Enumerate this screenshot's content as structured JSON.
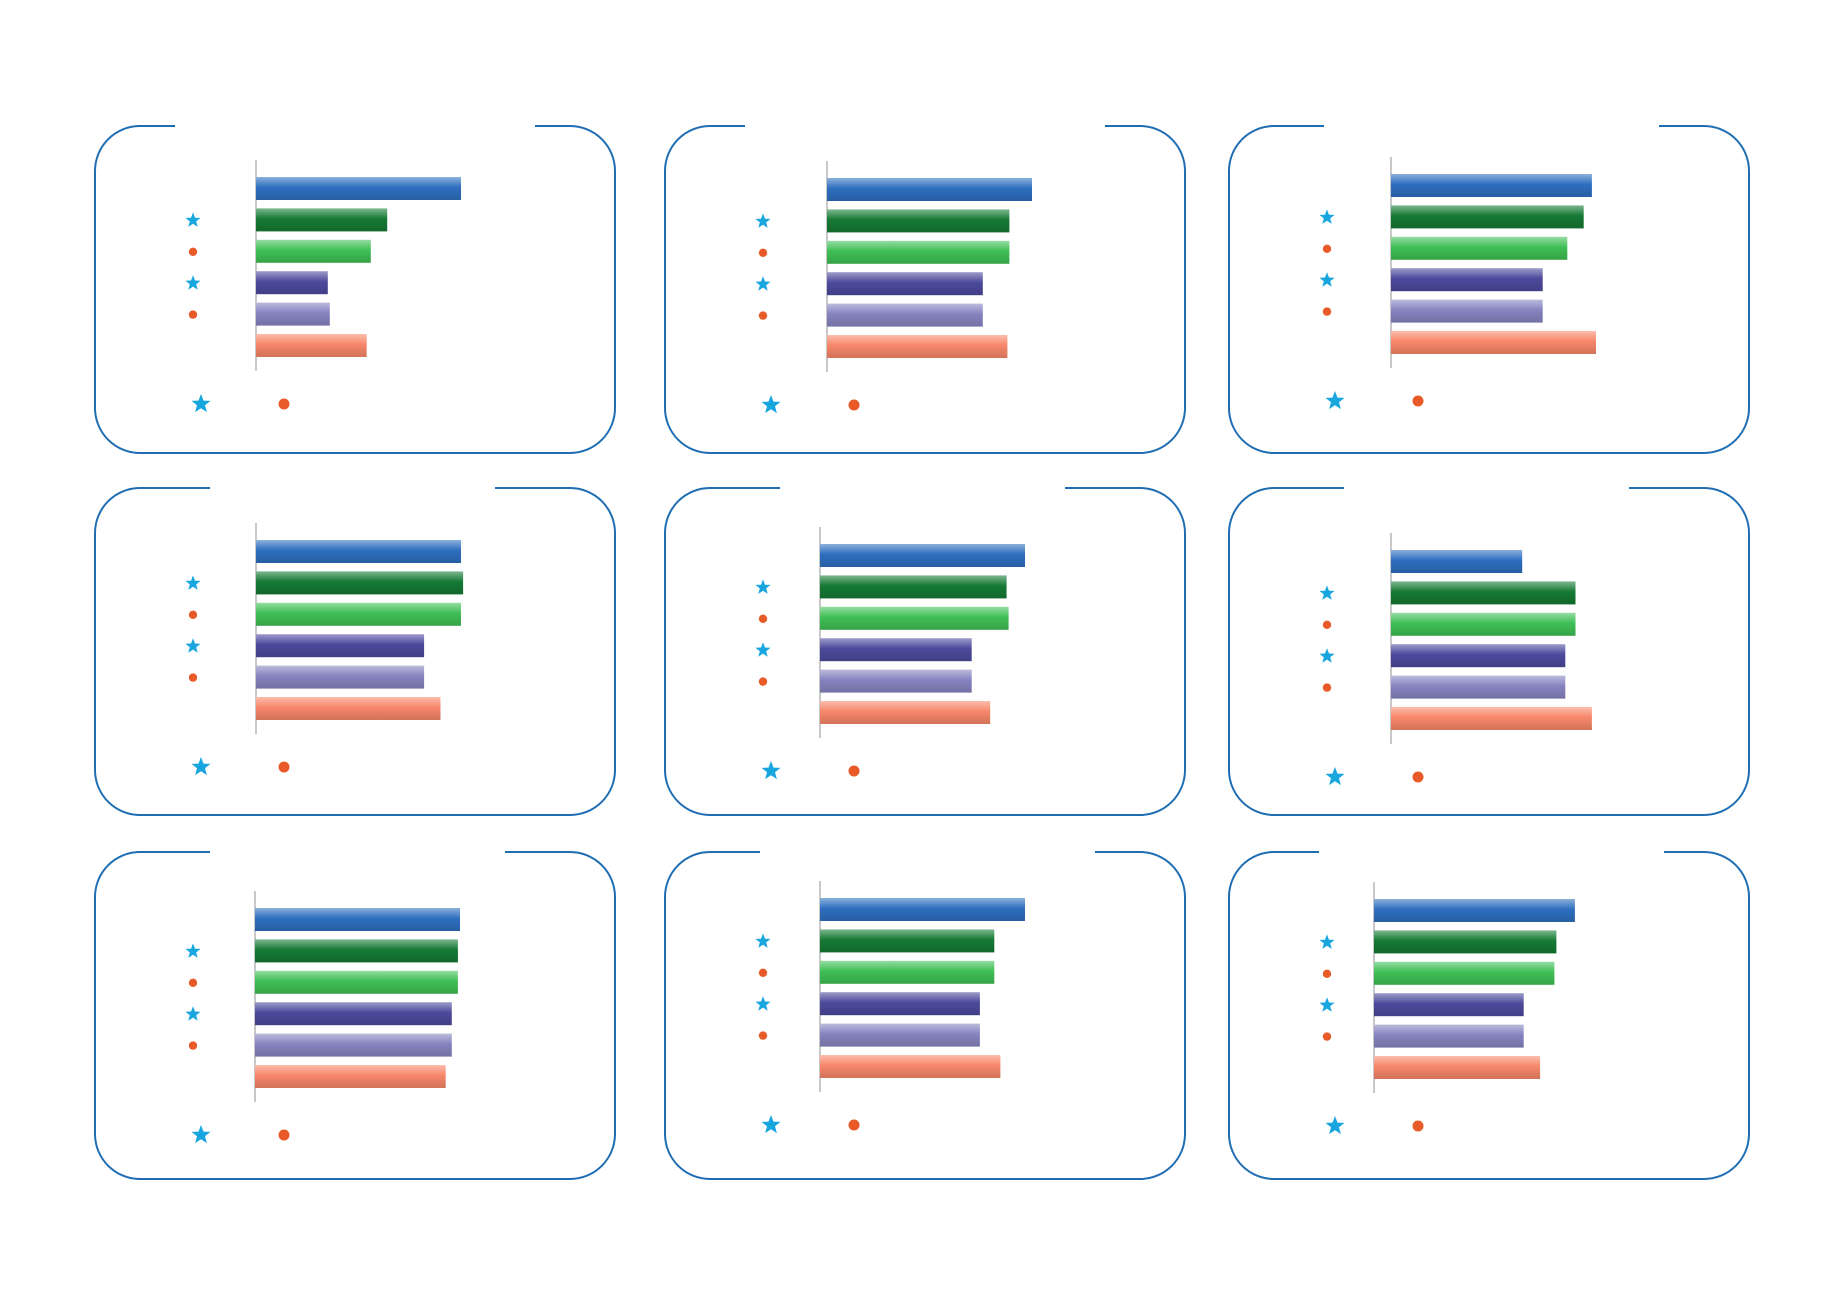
{
  "colors": {
    "frame": "#1f6db3",
    "star": "#19a6df",
    "dot": "#e85b28",
    "series": [
      "#2e6fbf",
      "#157a34",
      "#3fbf55",
      "#4c4a9c",
      "#8684c0",
      "#f7876a"
    ]
  },
  "icons": {
    "row_markers": [
      "star-icon",
      "dot-icon",
      "star-icon",
      "dot-icon"
    ],
    "legend_markers": [
      "star-icon",
      "dot-icon"
    ]
  },
  "chart_data": [
    {
      "type": "bar",
      "orientation": "horizontal",
      "values": [
        100,
        64,
        56,
        35,
        36,
        54
      ]
    },
    {
      "type": "bar",
      "orientation": "horizontal",
      "values": [
        100,
        89,
        89,
        76,
        76,
        88
      ]
    },
    {
      "type": "bar",
      "orientation": "horizontal",
      "values": [
        98,
        94,
        86,
        74,
        74,
        100
      ]
    },
    {
      "type": "bar",
      "orientation": "horizontal",
      "values": [
        100,
        101,
        100,
        82,
        82,
        90
      ]
    },
    {
      "type": "bar",
      "orientation": "horizontal",
      "values": [
        100,
        91,
        92,
        74,
        74,
        83
      ]
    },
    {
      "type": "bar",
      "orientation": "horizontal",
      "values": [
        64,
        90,
        90,
        85,
        85,
        98
      ]
    },
    {
      "type": "bar",
      "orientation": "horizontal",
      "values": [
        100,
        99,
        99,
        96,
        96,
        93
      ]
    },
    {
      "type": "bar",
      "orientation": "horizontal",
      "values": [
        100,
        85,
        85,
        78,
        78,
        88
      ]
    },
    {
      "type": "bar",
      "orientation": "horizontal",
      "values": [
        98,
        89,
        88,
        73,
        73,
        81
      ]
    }
  ]
}
